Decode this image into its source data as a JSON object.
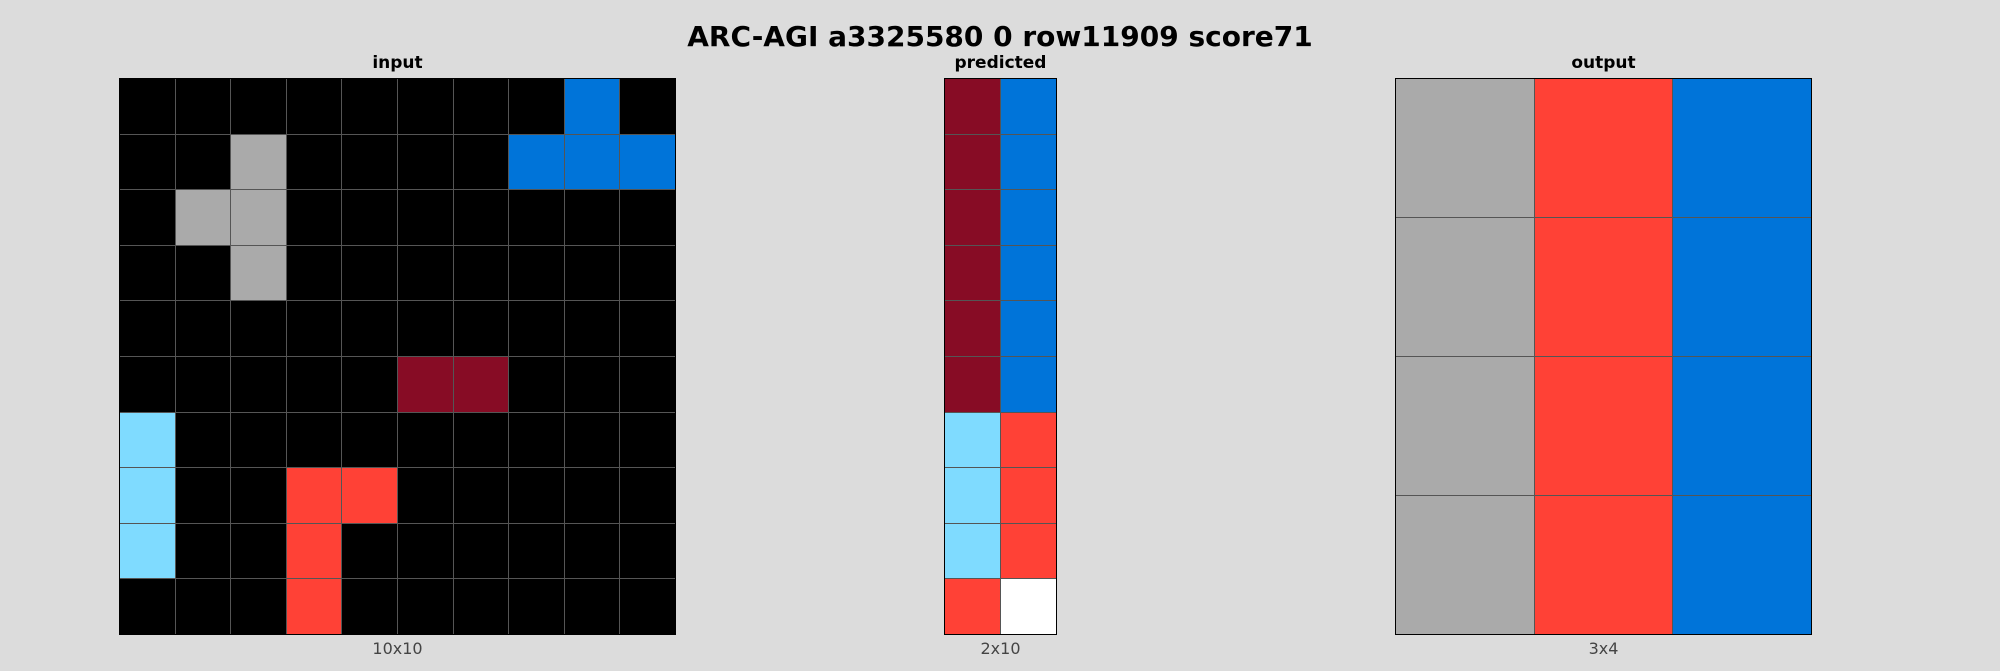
{
  "title": "ARC-AGI a3325580 0 row11909 score71",
  "palette": {
    "0": "#000000",
    "1": "#0074D9",
    "2": "#FF4136",
    "5": "#AAAAAA",
    "8": "#7FDBFF",
    "9": "#870C25",
    "w": "#FFFFFF"
  },
  "panels": {
    "input": {
      "label": "input",
      "dims": "10x10",
      "rows": [
        [
          0,
          0,
          0,
          0,
          0,
          0,
          0,
          0,
          1,
          0
        ],
        [
          0,
          0,
          5,
          0,
          0,
          0,
          0,
          1,
          1,
          1
        ],
        [
          0,
          5,
          5,
          0,
          0,
          0,
          0,
          0,
          0,
          0
        ],
        [
          0,
          0,
          5,
          0,
          0,
          0,
          0,
          0,
          0,
          0
        ],
        [
          0,
          0,
          0,
          0,
          0,
          0,
          0,
          0,
          0,
          0
        ],
        [
          0,
          0,
          0,
          0,
          0,
          9,
          9,
          0,
          0,
          0
        ],
        [
          8,
          0,
          0,
          0,
          0,
          0,
          0,
          0,
          0,
          0
        ],
        [
          8,
          0,
          0,
          2,
          2,
          0,
          0,
          0,
          0,
          0
        ],
        [
          8,
          0,
          0,
          2,
          0,
          0,
          0,
          0,
          0,
          0
        ],
        [
          0,
          0,
          0,
          2,
          0,
          0,
          0,
          0,
          0,
          0
        ]
      ]
    },
    "predicted": {
      "label": "predicted",
      "dims": "2x10",
      "rows": [
        [
          9,
          1
        ],
        [
          9,
          1
        ],
        [
          9,
          1
        ],
        [
          9,
          1
        ],
        [
          9,
          1
        ],
        [
          9,
          1
        ],
        [
          8,
          2
        ],
        [
          8,
          2
        ],
        [
          8,
          2
        ],
        [
          2,
          "w"
        ]
      ]
    },
    "output": {
      "label": "output",
      "dims": "3x4",
      "rows": [
        [
          5,
          2,
          1
        ],
        [
          5,
          2,
          1
        ],
        [
          5,
          2,
          1
        ],
        [
          5,
          2,
          1
        ]
      ]
    }
  }
}
